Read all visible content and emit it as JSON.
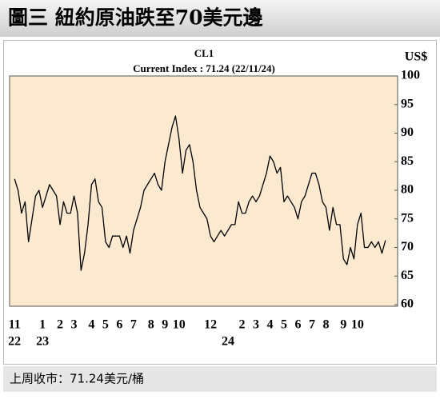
{
  "header": {
    "title": "圖三 紐約原油跌至70美元邊"
  },
  "chart_data": {
    "type": "line",
    "title": "CL1",
    "subtitle": "Current Index : 71.24 (22/11/24)",
    "y_unit": "US$",
    "color": "#000000",
    "categories": [
      "11",
      null,
      null,
      null,
      null,
      null,
      null,
      null,
      "1",
      null,
      null,
      null,
      null,
      "2",
      null,
      null,
      null,
      "3",
      null,
      null,
      null,
      null,
      "4",
      null,
      null,
      null,
      "5",
      null,
      null,
      null,
      "6",
      null,
      null,
      null,
      "7",
      null,
      null,
      null,
      null,
      "8",
      null,
      null,
      null,
      "9",
      null,
      null,
      null,
      "10",
      null,
      null,
      null,
      null,
      null,
      null,
      null,
      null,
      "12",
      null,
      null,
      null,
      null,
      null,
      null,
      null,
      null,
      "2",
      null,
      null,
      null,
      "3",
      null,
      null,
      null,
      "4",
      null,
      null,
      null,
      "5",
      null,
      null,
      null,
      "6",
      null,
      null,
      null,
      "7",
      null,
      null,
      null,
      "8",
      null,
      null,
      null,
      null,
      "9",
      null,
      null,
      null,
      "10",
      null,
      null,
      null,
      null,
      null,
      null,
      null,
      null
    ],
    "category_years": [
      "22",
      null,
      null,
      null,
      null,
      null,
      null,
      null,
      "23",
      null,
      null,
      null,
      null,
      null,
      null,
      null,
      null,
      null,
      null,
      null,
      null,
      null,
      null,
      null,
      null,
      null,
      null,
      null,
      null,
      null,
      null,
      null,
      null,
      null,
      null,
      null,
      null,
      null,
      null,
      null,
      null,
      null,
      null,
      null,
      null,
      null,
      null,
      null,
      null,
      null,
      null,
      null,
      null,
      null,
      null,
      null,
      null,
      null,
      null,
      null,
      null,
      "24",
      null,
      null,
      null,
      null,
      null,
      null,
      null,
      null,
      null,
      null,
      null,
      null,
      null,
      null,
      null,
      null,
      null,
      null,
      null,
      null,
      null,
      null,
      null,
      null,
      null,
      null,
      null,
      null,
      null,
      null,
      null,
      null,
      null,
      null,
      null,
      null,
      null,
      null,
      null,
      null,
      null,
      null,
      null,
      null,
      null
    ],
    "values": [
      82,
      80,
      76,
      78,
      71,
      75,
      79,
      80,
      77,
      79,
      81,
      80,
      79,
      74,
      78,
      76,
      76,
      79,
      76,
      66,
      69,
      74,
      81,
      82,
      78,
      77,
      71,
      70,
      72,
      72,
      72,
      70,
      72,
      69,
      73,
      75,
      77,
      80,
      81,
      82,
      83,
      81,
      80,
      85,
      88,
      91,
      93,
      89,
      83,
      87,
      88,
      85,
      80,
      77,
      76,
      75,
      72,
      71,
      72,
      73,
      72,
      73,
      74,
      74,
      78,
      76,
      76,
      78,
      79,
      78,
      79,
      81,
      83,
      86,
      85,
      83,
      84,
      78,
      79,
      78,
      77,
      75,
      78,
      79,
      81,
      83,
      83,
      81,
      78,
      77,
      73,
      77,
      74,
      74,
      68,
      67,
      70,
      68,
      74,
      76,
      70,
      70,
      71,
      70,
      71,
      69,
      71.24
    ],
    "ylim": [
      60,
      100
    ],
    "yticks": [
      60,
      65,
      70,
      75,
      80,
      85,
      90,
      95,
      100
    ]
  },
  "footer": {
    "text": "上周收市：71.24美元/桶"
  }
}
